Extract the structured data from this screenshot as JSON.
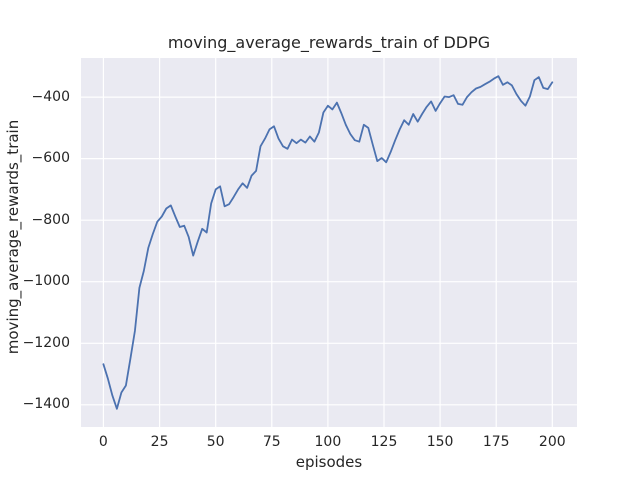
{
  "chart_data": {
    "type": "line",
    "title": "moving_average_rewards_train of DDPG",
    "xlabel": "episodes",
    "ylabel": "moving_average_rewards_train",
    "x_tick_values": [
      0,
      25,
      50,
      75,
      100,
      125,
      150,
      175,
      200
    ],
    "x_tick_labels": [
      "0",
      "25",
      "50",
      "75",
      "100",
      "125",
      "150",
      "175",
      "200"
    ],
    "y_tick_values": [
      -400,
      -600,
      -800,
      -1000,
      -1200,
      -1400
    ],
    "y_tick_labels": [
      "−400",
      "−600",
      "−800",
      "−1000",
      "−1200",
      "−1400"
    ],
    "xlim": [
      -10,
      211
    ],
    "ylim": [
      -1472,
      -273
    ],
    "grid": true,
    "legend": null,
    "style": "seaborn-darkgrid",
    "colors": {
      "line": "#4C72B0",
      "plot_bg": "#EAEAF2",
      "grid": "#FFFFFF",
      "text": "#262626",
      "figure_bg": "#FFFFFF"
    },
    "series": [
      {
        "name": "moving_average_rewards_train",
        "x": [
          0,
          2,
          4,
          6,
          8,
          10,
          12,
          14,
          16,
          18,
          20,
          22,
          24,
          26,
          28,
          30,
          32,
          34,
          36,
          38,
          40,
          42,
          44,
          46,
          48,
          50,
          52,
          54,
          56,
          58,
          60,
          62,
          64,
          66,
          68,
          70,
          72,
          74,
          76,
          78,
          80,
          82,
          84,
          86,
          88,
          90,
          92,
          94,
          96,
          98,
          100,
          102,
          104,
          106,
          108,
          110,
          112,
          114,
          116,
          118,
          120,
          122,
          124,
          126,
          128,
          130,
          132,
          134,
          136,
          138,
          140,
          142,
          144,
          146,
          148,
          150,
          152,
          154,
          156,
          158,
          160,
          162,
          164,
          166,
          168,
          170,
          172,
          174,
          176,
          178,
          180,
          182,
          184,
          186,
          188,
          190,
          192,
          194,
          196,
          198,
          200
        ],
        "y": [
          -1268,
          -1315,
          -1370,
          -1413,
          -1360,
          -1337,
          -1250,
          -1160,
          -1020,
          -965,
          -890,
          -845,
          -805,
          -788,
          -762,
          -752,
          -788,
          -822,
          -818,
          -855,
          -915,
          -870,
          -828,
          -840,
          -745,
          -700,
          -690,
          -755,
          -748,
          -725,
          -700,
          -680,
          -695,
          -655,
          -640,
          -560,
          -535,
          -505,
          -495,
          -535,
          -560,
          -568,
          -538,
          -550,
          -538,
          -548,
          -528,
          -545,
          -515,
          -450,
          -428,
          -440,
          -418,
          -452,
          -490,
          -520,
          -540,
          -545,
          -490,
          -500,
          -555,
          -608,
          -598,
          -612,
          -578,
          -540,
          -505,
          -475,
          -490,
          -455,
          -480,
          -455,
          -432,
          -414,
          -445,
          -420,
          -398,
          -400,
          -394,
          -422,
          -425,
          -400,
          -384,
          -372,
          -367,
          -358,
          -350,
          -340,
          -332,
          -360,
          -352,
          -362,
          -390,
          -412,
          -428,
          -398,
          -345,
          -335,
          -370,
          -374,
          -352
        ]
      }
    ]
  }
}
